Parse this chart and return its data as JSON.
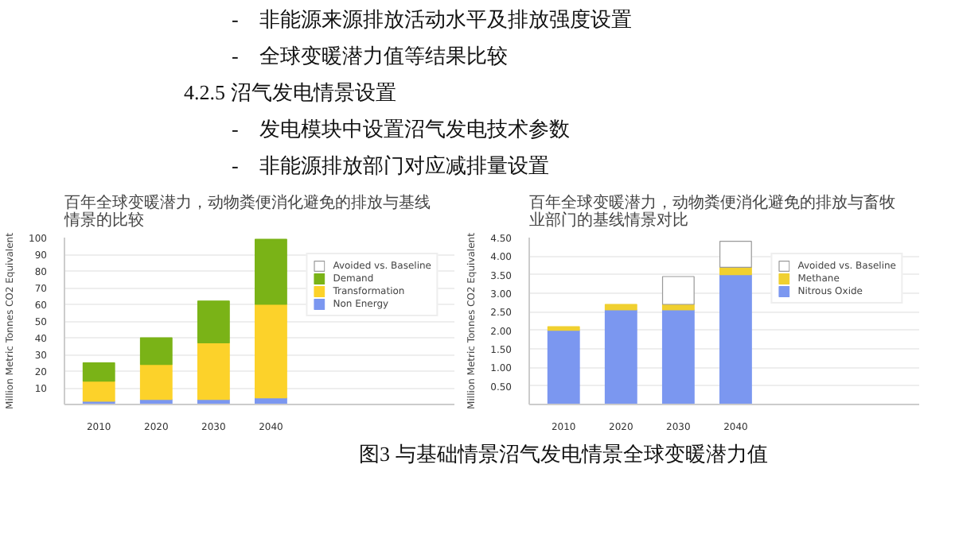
{
  "chart_data": [
    {
      "type": "bar",
      "title": "百年全球变暖潜力，动物粪便消化避免的排放与基线情景的比较",
      "ylabel": "Million Metric Tonnes CO2 Equivalent",
      "categories": [
        "2010",
        "2020",
        "2030",
        "2040"
      ],
      "stacked": true,
      "ylim": [
        0,
        100
      ],
      "yticks": [
        10,
        20,
        30,
        40,
        50,
        60,
        70,
        80,
        90,
        100
      ],
      "grid": "y",
      "legend": "right",
      "series": [
        {
          "name": "Non Energy",
          "color": "#7b97f0",
          "values": [
            2,
            3,
            3,
            4
          ]
        },
        {
          "name": "Transformation",
          "color": "#fcd22a",
          "values": [
            12,
            21,
            34,
            56
          ]
        },
        {
          "name": "Demand",
          "color": "#7ab317",
          "values": [
            11,
            16,
            25,
            39
          ]
        },
        {
          "name": "Avoided vs. Baseline",
          "color": "#ffffff",
          "values": [
            null,
            null,
            null,
            null
          ]
        }
      ],
      "annotations": [
        "-　非能源来源排放活动水平及排放强度设置",
        "-　全球变暖潜力值等结果比较",
        "4.2.5 沼气发电情景设置",
        "-　发电模块中设置沼气发电技术参数",
        "-　非能源排放部门对应减排量设置",
        "图3 与基础情景沼气发电情景全球变暖潜力值"
      ]
    },
    {
      "type": "bar",
      "title": "百年全球变暖潜力，动物粪便消化避免的排放与畜牧业部门的基线情景对比",
      "ylabel": "Million Metric Tonnes CO2 Equivalent",
      "categories": [
        "2010",
        "2020",
        "2030",
        "2040"
      ],
      "stacked": true,
      "ylim": [
        0,
        4.5
      ],
      "yticks": [
        {
          "value": 0.5,
          "label": "0.50"
        },
        {
          "value": 1.0,
          "label": "1.00"
        },
        {
          "value": 1.5,
          "label": "1.50"
        },
        {
          "value": 2.0,
          "label": "2.00"
        },
        {
          "value": 2.5,
          "label": "2.50"
        },
        {
          "value": 3.0,
          "label": "3.00"
        },
        {
          "value": 3.5,
          "label": "3.50"
        },
        {
          "value": 4.0,
          "label": "4.00"
        },
        {
          "value": 4.5,
          "label": "4.50"
        }
      ],
      "grid": "y",
      "legend": "right",
      "series": [
        {
          "name": "Nitrous Oxide",
          "color": "#7b97f0",
          "values": [
            2.0,
            2.55,
            2.55,
            3.5
          ]
        },
        {
          "name": "Methane",
          "color": "#f0d030",
          "values": [
            0.1,
            0.15,
            0.15,
            0.2
          ]
        },
        {
          "name": "Avoided vs. Baseline",
          "color": "#ffffff",
          "values": [
            null,
            null,
            0.75,
            0.7
          ]
        }
      ]
    }
  ]
}
